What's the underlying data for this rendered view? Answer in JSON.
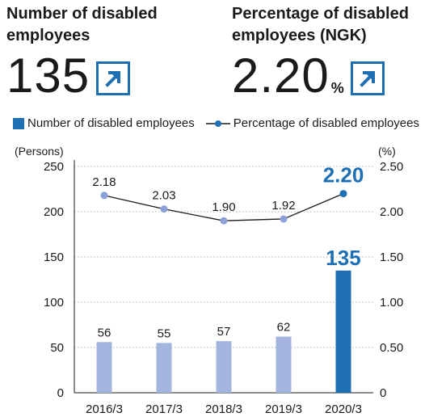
{
  "kpis": [
    {
      "title": "Number of disabled employees",
      "value": "135",
      "unit": "",
      "trend": "up-right-arrow-icon"
    },
    {
      "title": "Percentage of disabled employees (NGK)",
      "value": "2.20",
      "unit": "%",
      "trend": "up-right-arrow-icon"
    }
  ],
  "legend": {
    "bars": "Number of disabled employees",
    "line": "Percentage of disabled employees"
  },
  "colors": {
    "bar": "#a3b4df",
    "bar_highlight": "#1f6fb5",
    "line": "#1a1a1a",
    "point": "#8aa0d6",
    "point_highlight": "#1f6fb5"
  },
  "chart_data": {
    "type": "bar",
    "categories": [
      "2016/3",
      "2017/3",
      "2018/3",
      "2019/3",
      "2020/3"
    ],
    "series": [
      {
        "name": "Number of disabled employees",
        "type": "bar",
        "axis": "left",
        "values": [
          56,
          55,
          57,
          62,
          135
        ],
        "labels": [
          "56",
          "55",
          "57",
          "62",
          "135"
        ]
      },
      {
        "name": "Percentage of disabled employees",
        "type": "line",
        "axis": "right",
        "values": [
          2.18,
          2.03,
          1.9,
          1.92,
          2.2
        ],
        "labels": [
          "2.18",
          "2.03",
          "1.90",
          "1.92",
          "2.20"
        ]
      }
    ],
    "ylabel": "(Persons)",
    "y2label": "(%)",
    "ylim": [
      0,
      250
    ],
    "y2lim": [
      0,
      2.5
    ],
    "yticks": [
      "0",
      "50",
      "100",
      "150",
      "200",
      "250"
    ],
    "y2ticks": [
      "0",
      "0.50",
      "1.00",
      "1.50",
      "2.00",
      "2.50"
    ],
    "grid": "dotted horizontal",
    "highlight_index": 4
  }
}
